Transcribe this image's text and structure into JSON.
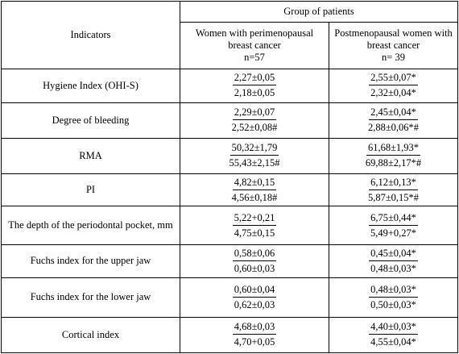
{
  "header": {
    "indicators": "Indicators",
    "group": "Group of patients",
    "col1_title": "Women with perimenopausal breast cancer",
    "col1_n": "n=57",
    "col2_title": "Postmenopausal women with breast cancer",
    "col2_n": "n= 39"
  },
  "rows": [
    {
      "label": "Hygiene Index (OHI-S)",
      "c1_top": "2,27±0,05",
      "c1_bottom": "2,18±0,05",
      "c2_top": "2,55±0,07*",
      "c2_bottom": "2,32±0,04*"
    },
    {
      "label": "Degree of bleeding",
      "c1_top": "2,29±0,07",
      "c1_bottom": "2,52±0,08#",
      "c2_top": "2,45±0,04*",
      "c2_bottom": "2,88±0,06*#"
    },
    {
      "label": "RMA",
      "c1_top": "50,32±1,79",
      "c1_bottom": "55,43±2,15#",
      "c2_top": "61,68±1,93*",
      "c2_bottom": "69,88±2,17*#"
    },
    {
      "label": "PI",
      "c1_top": "4,82±0,15",
      "c1_bottom": "4,56±0,18#",
      "c2_top": "6,12±0,13*",
      "c2_bottom": "5,87±0,15*#"
    },
    {
      "label": "The depth of the periodontal pocket, mm",
      "c1_top": "5,22+0,21",
      "c1_bottom": "4,75±0,15",
      "c2_top": "6,75±0,44*",
      "c2_bottom": "5,49+0,27*"
    },
    {
      "label": "Fuchs index for the upper jaw",
      "c1_top": "0,58±0,06",
      "c1_bottom": "0,60±0,03",
      "c2_top": "0,45±0,04*",
      "c2_bottom": "0,48±0,03*"
    },
    {
      "label": "Fuchs index for the lower jaw",
      "c1_top": "0,60±0,04",
      "c1_bottom": "0,62±0,03",
      "c2_top": "0,48±0,03*",
      "c2_bottom": "0,50±0,03*"
    },
    {
      "label": "Cortical index",
      "c1_top": "4,68±0,03",
      "c1_bottom": "4,70+0,05",
      "c2_top": "4,40±0,03*",
      "c2_bottom": "4,55±0,04*"
    }
  ]
}
